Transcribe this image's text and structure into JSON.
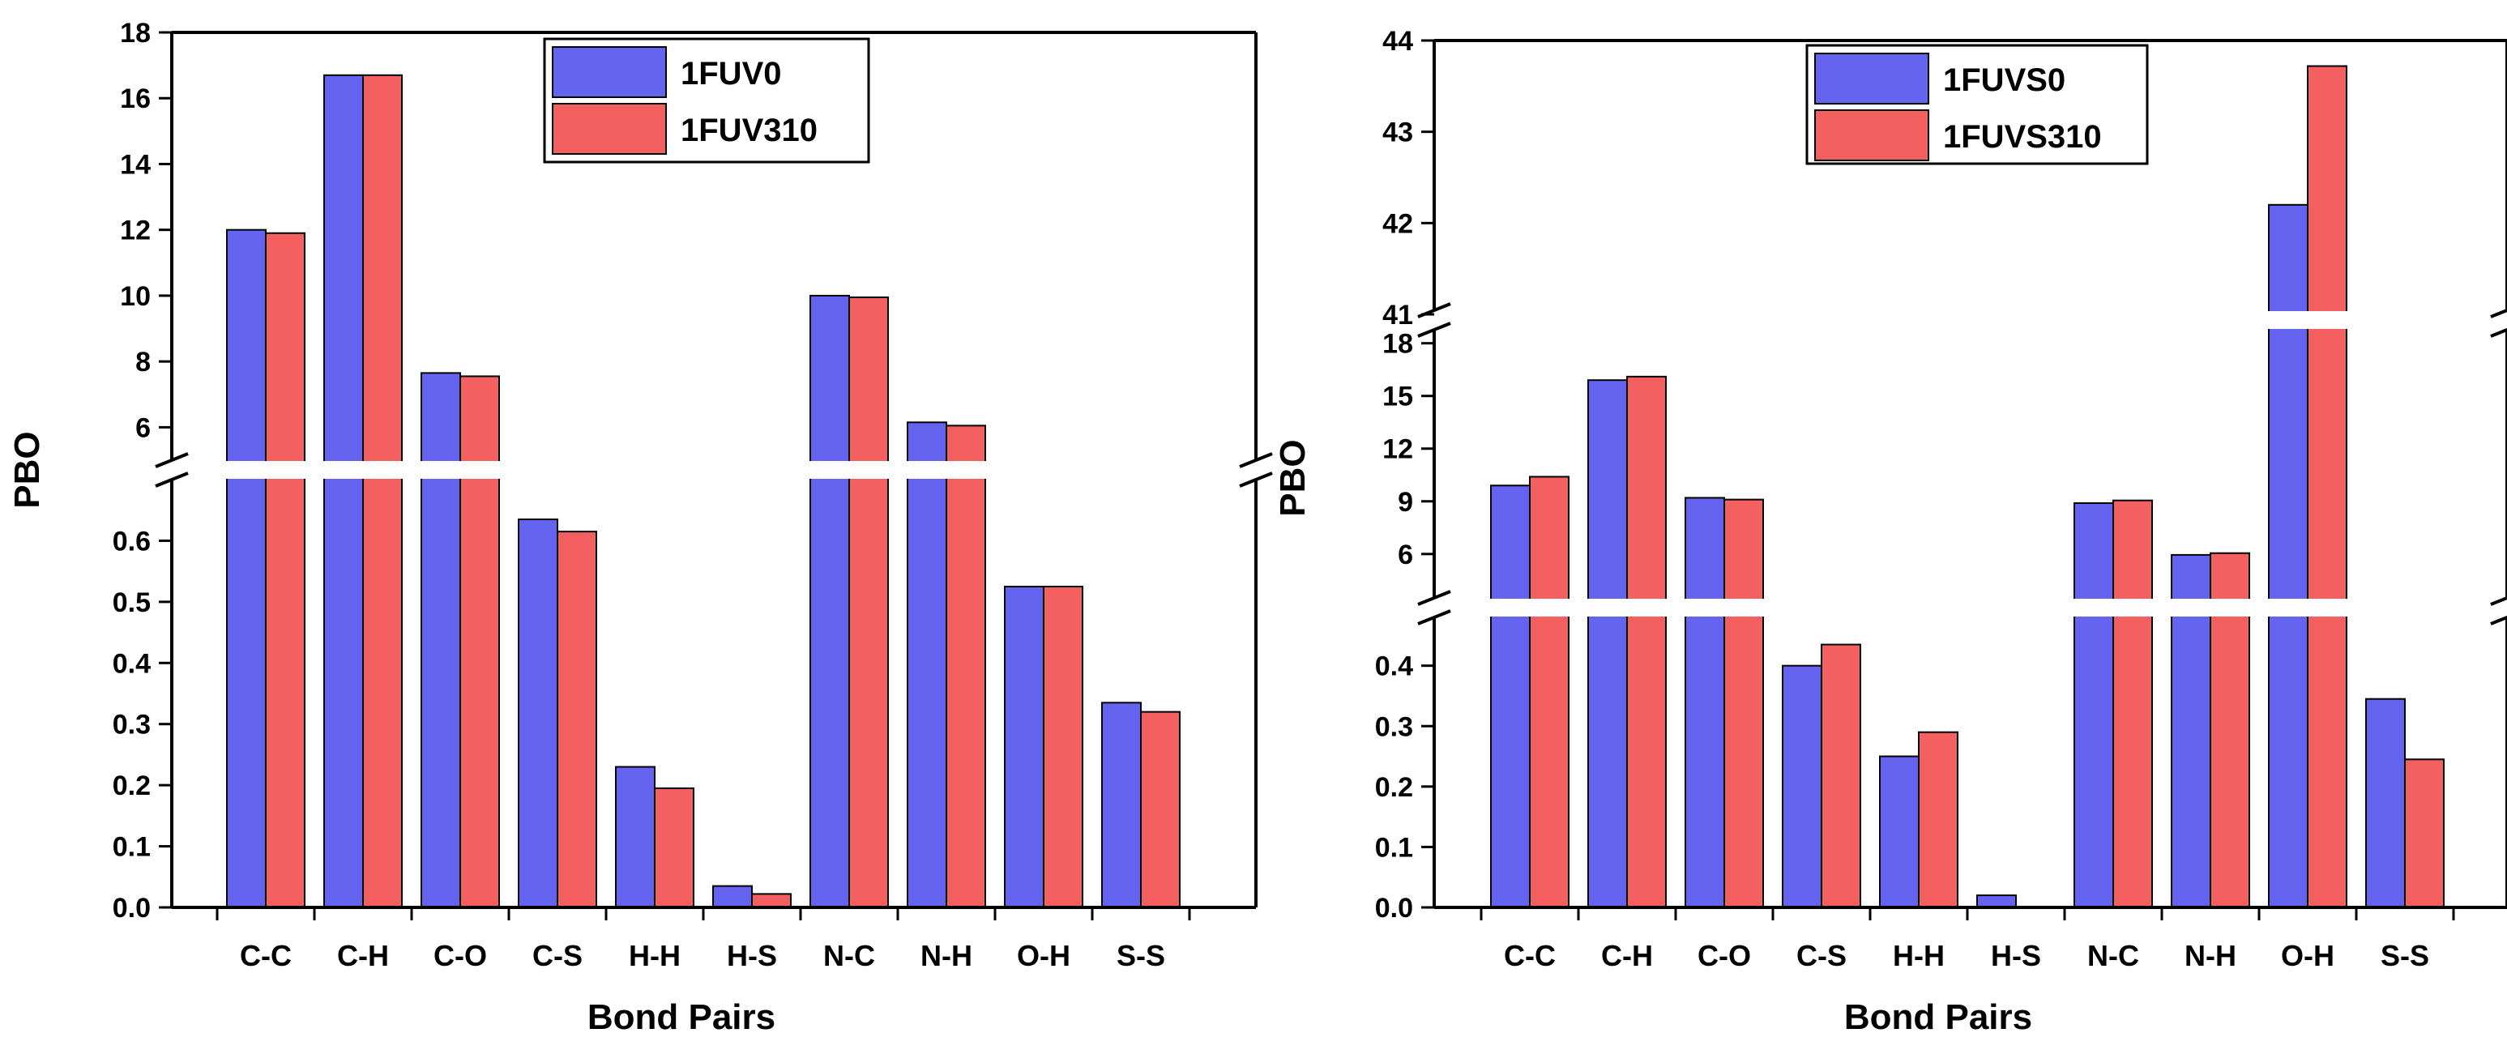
{
  "colors": {
    "series1": "#6464f0",
    "series2": "#f46060",
    "break": "#ffffff",
    "axis": "#000000"
  },
  "chart_data": [
    {
      "type": "bar",
      "categories": [
        "C-C",
        "C-H",
        "C-O",
        "C-S",
        "H-H",
        "H-S",
        "N-C",
        "N-H",
        "O-H",
        "S-S"
      ],
      "series": [
        {
          "name": "1FUV0",
          "values": [
            12.0,
            16.7,
            7.65,
            0.635,
            0.23,
            0.035,
            10.0,
            6.15,
            0.525,
            0.335
          ]
        },
        {
          "name": "1FUV310",
          "values": [
            11.9,
            16.7,
            7.55,
            0.615,
            0.195,
            0.022,
            9.95,
            6.05,
            0.525,
            0.32
          ]
        }
      ],
      "xlabel": "Bond Pairs",
      "ylabel": "PBO",
      "broken_axis": true,
      "segments": [
        {
          "range": [
            0,
            0.7
          ],
          "ticks": [
            "0.0",
            "0.1",
            "0.2",
            "0.3",
            "0.4",
            "0.5",
            "0.6"
          ]
        },
        {
          "range": [
            5,
            18
          ],
          "ticks": [
            "6",
            "8",
            "10",
            "12",
            "14",
            "16",
            "18"
          ]
        }
      ],
      "legend": "top-center"
    },
    {
      "type": "bar",
      "categories": [
        "C-C",
        "C-H",
        "C-O",
        "C-S",
        "H-H",
        "H-S",
        "N-C",
        "N-H",
        "O-H",
        "S-S"
      ],
      "series": [
        {
          "name": "1FUVS0",
          "values": [
            9.9,
            15.9,
            9.2,
            0.4,
            0.25,
            0.02,
            8.9,
            5.95,
            42.2,
            0.345
          ]
        },
        {
          "name": "1FUVS310",
          "values": [
            10.4,
            16.1,
            9.1,
            0.435,
            0.29,
            0.0,
            9.05,
            6.05,
            43.72,
            0.245
          ]
        }
      ],
      "xlabel": "Bond Pairs",
      "ylabel": "PBO",
      "broken_axis": true,
      "segments": [
        {
          "range": [
            0,
            0.48
          ],
          "ticks": [
            "0.0",
            "0.1",
            "0.2",
            "0.3",
            "0.4"
          ]
        },
        {
          "range": [
            3.5,
            19
          ],
          "ticks": [
            "6",
            "9",
            "12",
            "15",
            "18"
          ]
        },
        {
          "range": [
            41,
            44
          ],
          "ticks": [
            "41",
            "42",
            "43",
            "44"
          ]
        }
      ],
      "legend": "top-center"
    }
  ]
}
